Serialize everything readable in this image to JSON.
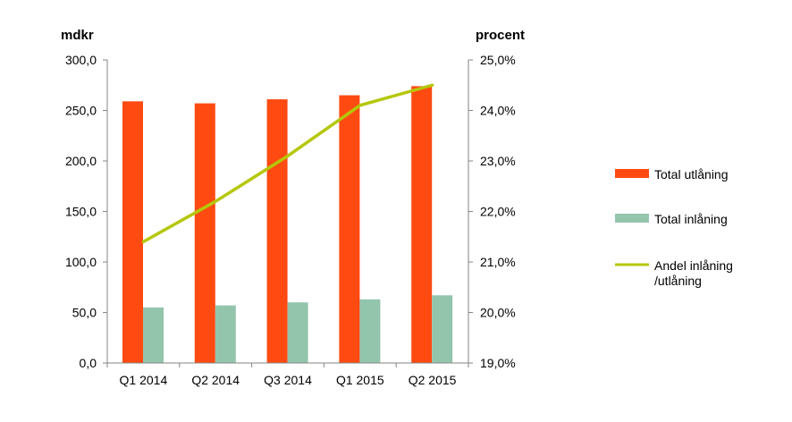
{
  "chart_data": {
    "type": "bar",
    "categories": [
      "Q1 2014",
      "Q2 2014",
      "Q3 2014",
      "Q1 2015",
      "Q2 2015"
    ],
    "y_left_label": "mdkr",
    "y_right_label": "procent",
    "y_left_lim": [
      0,
      300
    ],
    "y_left_ticks": [
      "0,0",
      "50,0",
      "100,0",
      "150,0",
      "200,0",
      "250,0",
      "300,0"
    ],
    "y_right_lim": [
      19,
      25
    ],
    "y_right_ticks": [
      "19,0%",
      "20,0%",
      "21,0%",
      "22,0%",
      "23,0%",
      "24,0%",
      "25,0%"
    ],
    "grid": false,
    "legend_position": "right",
    "series": [
      {
        "name": "Total utlåning",
        "kind": "bar",
        "axis": "left",
        "color": "#ff4a12",
        "values": [
          259,
          257,
          261,
          265,
          274
        ]
      },
      {
        "name": "Total inlåning",
        "kind": "bar",
        "axis": "left",
        "color": "#93c5ad",
        "values": [
          55,
          57,
          60,
          63,
          67
        ]
      },
      {
        "name": "Andel inlåning /utlåning",
        "name_lines": [
          "Andel inlåning",
          "/utlåning"
        ],
        "kind": "line",
        "axis": "right",
        "color": "#b5c70a",
        "values": [
          21.4,
          22.2,
          23.1,
          24.1,
          24.5
        ]
      }
    ]
  }
}
